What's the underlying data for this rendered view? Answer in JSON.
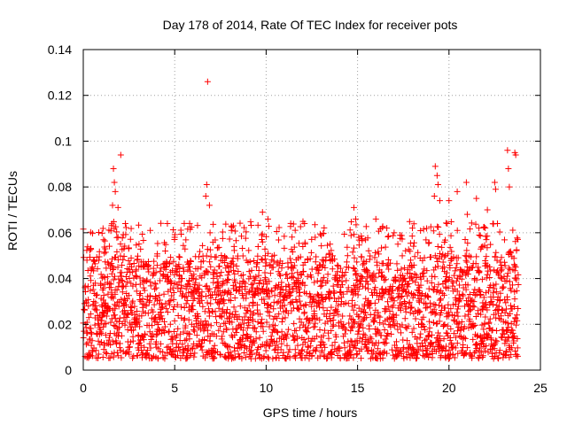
{
  "chart_data": {
    "type": "scatter",
    "title": "Day 178 of 2014, Rate Of TEC Index for receiver pots",
    "xlabel": "GPS time / hours",
    "ylabel": "ROTI / TECUs",
    "xlim": [
      0,
      25
    ],
    "ylim": [
      0,
      0.14
    ],
    "x_ticks": [
      0,
      5,
      10,
      15,
      20,
      25
    ],
    "x_tick_labels": [
      "0",
      "5",
      "10",
      "15",
      "20",
      "25"
    ],
    "y_ticks": [
      0,
      0.02,
      0.04,
      0.06,
      0.08,
      0.1,
      0.12,
      0.14
    ],
    "y_tick_labels": [
      "0",
      "0.02",
      "0.04",
      "0.06",
      "0.08",
      "0.1",
      "0.12",
      "0.14"
    ],
    "grid": true,
    "marker": "+",
    "colors": {
      "points": "#ff0000",
      "grid": "#a0a0a0",
      "axes": "#000000"
    },
    "series": [
      {
        "name": "ROTI",
        "points": [
          [
            6.8,
            0.126
          ],
          [
            2.05,
            0.094
          ],
          [
            1.65,
            0.088
          ],
          [
            1.7,
            0.082
          ],
          [
            1.75,
            0.078
          ],
          [
            1.6,
            0.072
          ],
          [
            1.9,
            0.071
          ],
          [
            2.3,
            0.064
          ],
          [
            0.2,
            0.048
          ],
          [
            0.5,
            0.045
          ],
          [
            1.2,
            0.053
          ],
          [
            4.6,
            0.064
          ],
          [
            6.75,
            0.081
          ],
          [
            6.7,
            0.076
          ],
          [
            6.9,
            0.072
          ],
          [
            8.1,
            0.061
          ],
          [
            9.8,
            0.069
          ],
          [
            10.1,
            0.066
          ],
          [
            12.1,
            0.064
          ],
          [
            13.5,
            0.055
          ],
          [
            14.8,
            0.071
          ],
          [
            14.9,
            0.066
          ],
          [
            16.0,
            0.066
          ],
          [
            16.6,
            0.062
          ],
          [
            19.25,
            0.089
          ],
          [
            19.35,
            0.085
          ],
          [
            19.4,
            0.081
          ],
          [
            19.2,
            0.076
          ],
          [
            19.5,
            0.074
          ],
          [
            20.0,
            0.074
          ],
          [
            20.45,
            0.078
          ],
          [
            20.95,
            0.082
          ],
          [
            21.5,
            0.075
          ],
          [
            22.5,
            0.082
          ],
          [
            22.55,
            0.079
          ],
          [
            23.2,
            0.096
          ],
          [
            23.25,
            0.088
          ],
          [
            23.3,
            0.08
          ],
          [
            23.6,
            0.095
          ],
          [
            23.65,
            0.094
          ],
          [
            22.1,
            0.07
          ],
          [
            21.0,
            0.068
          ],
          [
            18.0,
            0.062
          ],
          [
            17.0,
            0.06
          ],
          [
            5.0,
            0.058
          ]
        ],
        "dense_band": {
          "x_range": [
            0,
            23.8
          ],
          "typical_min": 0.005,
          "typical_max": 0.05,
          "spike_max": 0.065
        }
      }
    ]
  }
}
